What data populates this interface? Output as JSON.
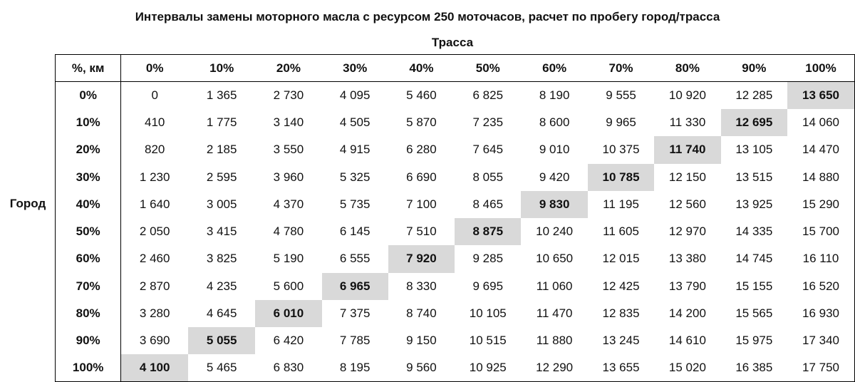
{
  "title": "Интервалы замены моторного масла с ресурсом 250 моточасов, расчет по пробегу город/трасса",
  "column_axis_label": "Трасса",
  "row_axis_label": "Город",
  "corner_label": "%, км",
  "columns": [
    "0%",
    "10%",
    "20%",
    "30%",
    "40%",
    "50%",
    "60%",
    "70%",
    "80%",
    "90%",
    "100%"
  ],
  "rows": [
    {
      "label": "0%",
      "values": [
        "0",
        "1 365",
        "2 730",
        "4 095",
        "5 460",
        "6 825",
        "8 190",
        "9 555",
        "10 920",
        "12 285",
        "13 650"
      ],
      "highlight_index": 10
    },
    {
      "label": "10%",
      "values": [
        "410",
        "1 775",
        "3 140",
        "4 505",
        "5 870",
        "7 235",
        "8 600",
        "9 965",
        "11 330",
        "12 695",
        "14 060"
      ],
      "highlight_index": 9
    },
    {
      "label": "20%",
      "values": [
        "820",
        "2 185",
        "3 550",
        "4 915",
        "6 280",
        "7 645",
        "9 010",
        "10 375",
        "11 740",
        "13 105",
        "14 470"
      ],
      "highlight_index": 8
    },
    {
      "label": "30%",
      "values": [
        "1 230",
        "2 595",
        "3 960",
        "5 325",
        "6 690",
        "8 055",
        "9 420",
        "10 785",
        "12 150",
        "13 515",
        "14 880"
      ],
      "highlight_index": 7
    },
    {
      "label": "40%",
      "values": [
        "1 640",
        "3 005",
        "4 370",
        "5 735",
        "7 100",
        "8 465",
        "9 830",
        "11 195",
        "12 560",
        "13 925",
        "15 290"
      ],
      "highlight_index": 6
    },
    {
      "label": "50%",
      "values": [
        "2 050",
        "3 415",
        "4 780",
        "6 145",
        "7 510",
        "8 875",
        "10 240",
        "11 605",
        "12 970",
        "14 335",
        "15 700"
      ],
      "highlight_index": 5
    },
    {
      "label": "60%",
      "values": [
        "2 460",
        "3 825",
        "5 190",
        "6 555",
        "7 920",
        "9 285",
        "10 650",
        "12 015",
        "13 380",
        "14 745",
        "16 110"
      ],
      "highlight_index": 4
    },
    {
      "label": "70%",
      "values": [
        "2 870",
        "4 235",
        "5 600",
        "6 965",
        "8 330",
        "9 695",
        "11 060",
        "12 425",
        "13 790",
        "15 155",
        "16 520"
      ],
      "highlight_index": 3
    },
    {
      "label": "80%",
      "values": [
        "3 280",
        "4 645",
        "6 010",
        "7 375",
        "8 740",
        "10 105",
        "11 470",
        "12 835",
        "14 200",
        "15 565",
        "16 930"
      ],
      "highlight_index": 2
    },
    {
      "label": "90%",
      "values": [
        "3 690",
        "5 055",
        "6 420",
        "7 785",
        "9 150",
        "10 515",
        "11 880",
        "13 245",
        "14 610",
        "15 975",
        "17 340"
      ],
      "highlight_index": 1
    },
    {
      "label": "100%",
      "values": [
        "4 100",
        "5 465",
        "6 830",
        "8 195",
        "9 560",
        "10 925",
        "12 290",
        "13 655",
        "15 020",
        "16 385",
        "17 750"
      ],
      "highlight_index": 0
    }
  ],
  "colors": {
    "highlight": "#d9d9d9",
    "border": "#000000"
  }
}
